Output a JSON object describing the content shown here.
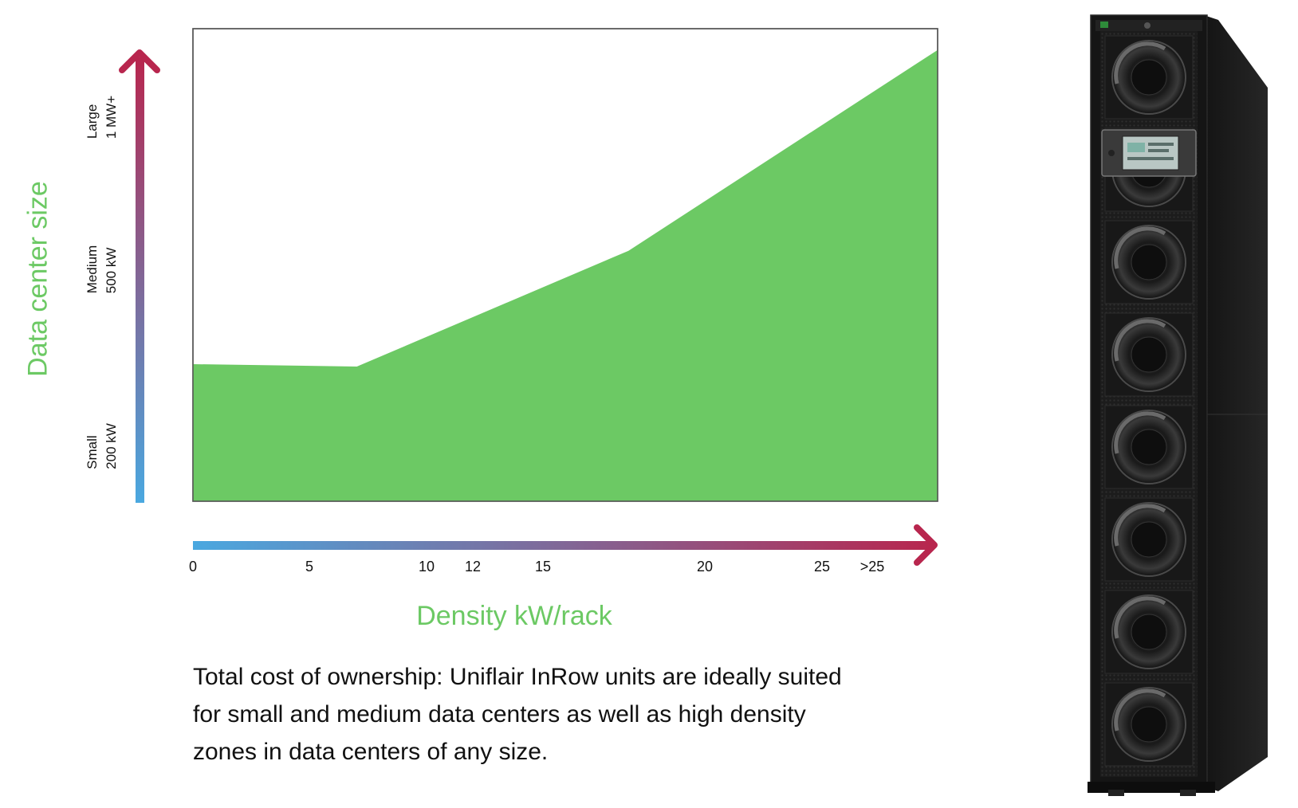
{
  "chart_data": {
    "type": "area",
    "title": "",
    "xlabel": "Density kW/rack",
    "ylabel": "Data center size",
    "x_ticks": [
      "0",
      "5",
      "10",
      "12",
      "15",
      "20",
      "25",
      ">25"
    ],
    "y_ticks": [
      {
        "lines": [
          "Small",
          "200 kW"
        ]
      },
      {
        "lines": [
          "Medium",
          "500 kW"
        ]
      },
      {
        "lines": [
          "Large",
          "1 MW+"
        ]
      }
    ],
    "points": [
      {
        "x": 0,
        "y": 0.29
      },
      {
        "x": 7,
        "y": 0.285
      },
      {
        "x": 18.6,
        "y": 0.53
      },
      {
        "x": 31.8,
        "y": 0.955
      }
    ],
    "xlim": [
      0,
      31.8
    ],
    "ylim": [
      0,
      1
    ],
    "fill_color": "#6cc964",
    "axis_gradient": [
      "#4aa8e0",
      "#b8264e"
    ],
    "grid": false,
    "legend": "none"
  },
  "caption_lines": [
    "Total cost of ownership: Uniflair InRow units are ideally suited",
    "for small and medium data centers as well as high density",
    "zones in data centers of any size."
  ],
  "product_image": {
    "icon": "inrow-cooling-unit-icon",
    "fan_count": 8
  }
}
